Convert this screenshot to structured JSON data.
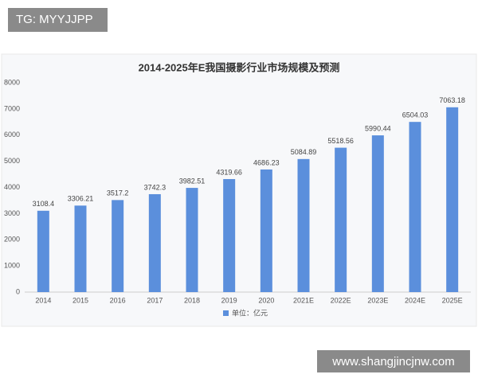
{
  "overlay": {
    "top_left": "TG: MYYJJPP",
    "bottom_right": "www.shangjincjnw.com"
  },
  "chart_data": {
    "type": "bar",
    "title": "2014-2025年E我国摄影行业市场规模及预测",
    "categories": [
      "2014",
      "2015",
      "2016",
      "2017",
      "2018",
      "2019",
      "2020",
      "2021E",
      "2022E",
      "2023E",
      "2024E",
      "2025E"
    ],
    "series": [
      {
        "name": "单位：亿元",
        "color": "#5b8fdc",
        "values": [
          3108.4,
          3306.21,
          3517.2,
          3742.3,
          3982.51,
          4319.66,
          4686.23,
          5084.89,
          5518.56,
          5990.44,
          6504.03,
          7063.18
        ]
      }
    ],
    "ylim": [
      0,
      8000
    ],
    "yticks": [
      0,
      1000,
      2000,
      3000,
      4000,
      5000,
      6000,
      7000,
      8000
    ],
    "grid": false,
    "legend": "bottom"
  }
}
